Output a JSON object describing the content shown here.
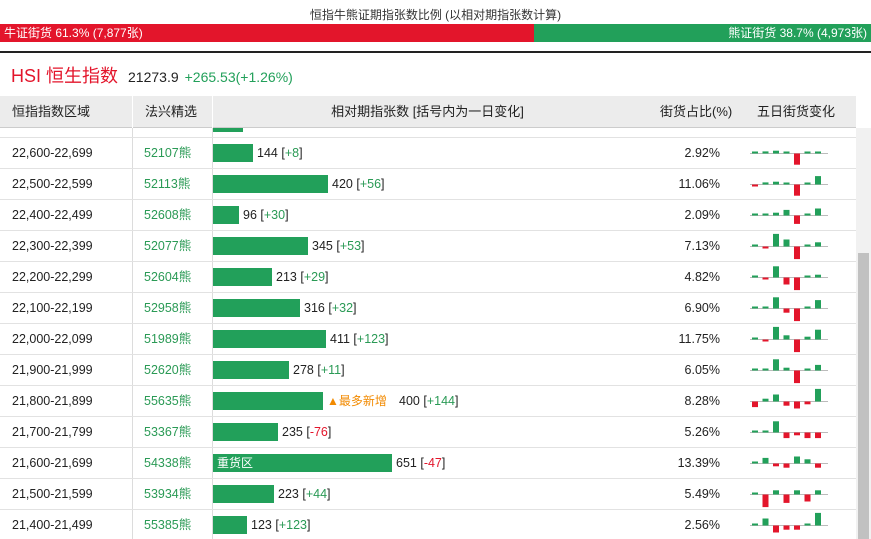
{
  "header": {
    "title": "恒指牛熊证期指张数比例 (以相对期指张数计算)",
    "bull_label": "牛证街货 61.3% (7,877张)",
    "bull_pct": 61.3,
    "bear_label": "熊证街货 38.7% (4,973张)",
    "bear_pct": 38.7
  },
  "index": {
    "name": "HSI 恒生指数",
    "value": "21273.9",
    "change": "+265.53(+1.26%)"
  },
  "columns": {
    "range": "恒指指数区域",
    "pick": "法兴精选",
    "contracts": "相对期指张数 [括号内为一日变化]",
    "share": "街货占比(%)",
    "five_day": "五日街货变化"
  },
  "colors": {
    "bull": "#e3152b",
    "bear": "#22a05a",
    "tag": "#f28a00"
  },
  "bar_max": 651,
  "rows": [
    {
      "range": "22,600-22,699",
      "code": "52107熊",
      "contracts": "144",
      "change": "+8",
      "share": "2.92%",
      "tag": "",
      "bar_label": "",
      "spark": [
        0,
        0.15,
        0.2,
        0.1,
        -0.8,
        0.05,
        0.1
      ]
    },
    {
      "range": "22,500-22,599",
      "code": "52113熊",
      "contracts": "420",
      "change": "+56",
      "share": "11.06%",
      "tag": "",
      "bar_label": "",
      "spark": [
        -0.1,
        0.15,
        0.2,
        0.1,
        -0.8,
        0.05,
        0.6
      ]
    },
    {
      "range": "22,400-22,499",
      "code": "52608熊",
      "contracts": "96",
      "change": "+30",
      "share": "2.09%",
      "tag": "",
      "bar_label": "",
      "spark": [
        0,
        0.1,
        0.2,
        0.4,
        -0.6,
        0.05,
        0.5
      ]
    },
    {
      "range": "22,300-22,399",
      "code": "52077熊",
      "contracts": "345",
      "change": "+53",
      "share": "7.13%",
      "tag": "",
      "bar_label": "",
      "spark": [
        0,
        -0.1,
        0.9,
        0.5,
        -0.9,
        0.05,
        0.3
      ]
    },
    {
      "range": "22,200-22,299",
      "code": "52604熊",
      "contracts": "213",
      "change": "+29",
      "share": "4.82%",
      "tag": "",
      "bar_label": "",
      "spark": [
        0,
        -0.1,
        0.8,
        -0.5,
        -0.9,
        0.1,
        0.2
      ]
    },
    {
      "range": "22,100-22,199",
      "code": "52958熊",
      "contracts": "316",
      "change": "+32",
      "share": "6.90%",
      "tag": "",
      "bar_label": "",
      "spark": [
        0,
        0.05,
        0.8,
        -0.3,
        -0.9,
        0.1,
        0.6
      ]
    },
    {
      "range": "22,000-22,099",
      "code": "51989熊",
      "contracts": "411",
      "change": "+123",
      "share": "11.75%",
      "tag": "",
      "bar_label": "",
      "spark": [
        0,
        -0.1,
        0.9,
        0.3,
        -0.9,
        0.2,
        0.7
      ]
    },
    {
      "range": "21,900-21,999",
      "code": "52620熊",
      "contracts": "278",
      "change": "+11",
      "share": "6.05%",
      "tag": "",
      "bar_label": "",
      "spark": [
        0,
        0.05,
        0.8,
        0.2,
        -0.9,
        0.1,
        0.4
      ]
    },
    {
      "range": "21,800-21,899",
      "code": "55635熊",
      "contracts": "400",
      "change": "+144",
      "share": "8.28%",
      "tag": "▲最多新增",
      "bar_label": "",
      "spark": [
        -0.4,
        0.2,
        0.5,
        -0.3,
        -0.5,
        -0.2,
        0.9
      ]
    },
    {
      "range": "21,700-21,799",
      "code": "53367熊",
      "contracts": "235",
      "change": "-76",
      "share": "5.26%",
      "tag": "",
      "bar_label": "",
      "spark": [
        0,
        0.05,
        0.8,
        -0.4,
        -0.2,
        -0.4,
        -0.4
      ]
    },
    {
      "range": "21,600-21,699",
      "code": "54338熊",
      "contracts": "651",
      "change": "-47",
      "share": "13.39%",
      "tag": "",
      "bar_label": "重货区",
      "spark": [
        0,
        0.4,
        -0.2,
        -0.3,
        0.5,
        0.3,
        -0.3
      ]
    },
    {
      "range": "21,500-21,599",
      "code": "53934熊",
      "contracts": "223",
      "change": "+44",
      "share": "5.49%",
      "tag": "",
      "bar_label": "",
      "spark": [
        0,
        -0.9,
        0.3,
        -0.6,
        0.3,
        -0.5,
        0.3
      ]
    },
    {
      "range": "21,400-21,499",
      "code": "55385熊",
      "contracts": "123",
      "change": "+123",
      "share": "2.56%",
      "tag": "",
      "bar_label": "",
      "spark": [
        0,
        0.5,
        -0.5,
        -0.3,
        -0.3,
        0.05,
        0.9
      ]
    }
  ]
}
